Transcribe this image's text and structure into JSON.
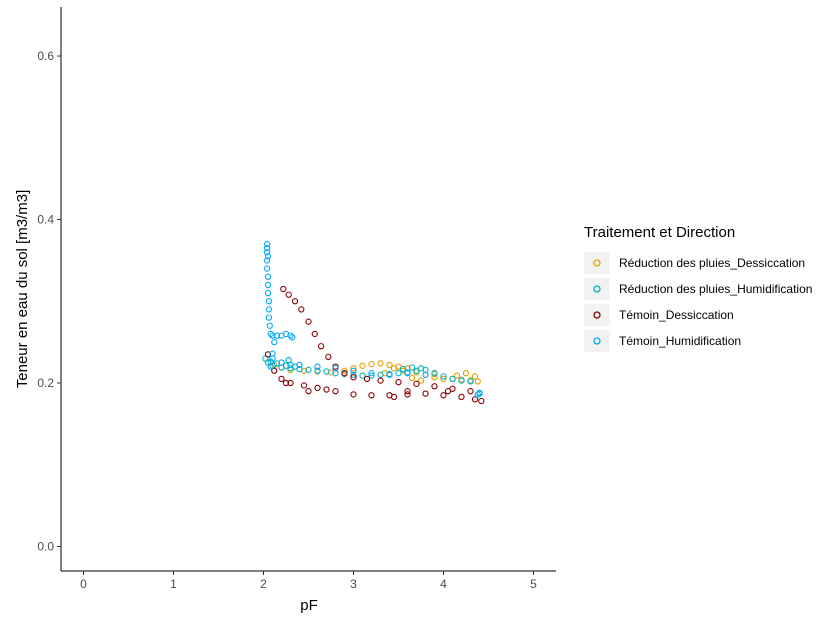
{
  "chart_data": {
    "type": "scatter",
    "title": "",
    "xlabel": "pF",
    "ylabel": "Teneur en eau du sol [m3/m3]",
    "xlim": [
      -0.25,
      5.25
    ],
    "ylim": [
      -0.03,
      0.66
    ],
    "xticks": [
      "0",
      "1",
      "2",
      "3",
      "4",
      "5"
    ],
    "yticks": [
      "0.0",
      "0.2",
      "0.4",
      "0.6"
    ],
    "grid": false,
    "legend": {
      "title": "Traitement et Direction",
      "position": "right"
    },
    "series": [
      {
        "name": "Réduction des pluies_Dessiccation",
        "color": "#E69F00",
        "points": [
          [
            2.05,
            0.225
          ],
          [
            2.12,
            0.222
          ],
          [
            2.2,
            0.219
          ],
          [
            2.3,
            0.216
          ],
          [
            2.45,
            0.215
          ],
          [
            2.6,
            0.214
          ],
          [
            2.75,
            0.213
          ],
          [
            2.9,
            0.215
          ],
          [
            3.0,
            0.218
          ],
          [
            3.1,
            0.221
          ],
          [
            3.2,
            0.223
          ],
          [
            3.3,
            0.224
          ],
          [
            3.4,
            0.222
          ],
          [
            3.5,
            0.22
          ],
          [
            3.6,
            0.218
          ],
          [
            3.7,
            0.213
          ],
          [
            3.8,
            0.21
          ],
          [
            3.9,
            0.207
          ],
          [
            4.0,
            0.205
          ],
          [
            4.1,
            0.205
          ],
          [
            4.2,
            0.204
          ],
          [
            4.3,
            0.203
          ],
          [
            4.38,
            0.202
          ],
          [
            3.55,
            0.215
          ],
          [
            3.45,
            0.218
          ],
          [
            3.65,
            0.206
          ],
          [
            3.75,
            0.203
          ],
          [
            4.25,
            0.212
          ],
          [
            4.35,
            0.208
          ],
          [
            3.35,
            0.212
          ],
          [
            3.9,
            0.211
          ],
          [
            4.15,
            0.209
          ]
        ]
      },
      {
        "name": "Réduction des pluies_Humidification",
        "color": "#00B2C2",
        "points": [
          [
            2.02,
            0.23
          ],
          [
            2.05,
            0.225
          ],
          [
            2.1,
            0.221
          ],
          [
            2.2,
            0.219
          ],
          [
            2.3,
            0.218
          ],
          [
            2.4,
            0.217
          ],
          [
            2.5,
            0.216
          ],
          [
            2.6,
            0.215
          ],
          [
            2.7,
            0.214
          ],
          [
            2.8,
            0.212
          ],
          [
            2.9,
            0.211
          ],
          [
            3.0,
            0.21
          ],
          [
            3.1,
            0.209
          ],
          [
            3.2,
            0.209
          ],
          [
            3.3,
            0.21
          ],
          [
            3.4,
            0.211
          ],
          [
            3.5,
            0.212
          ],
          [
            3.6,
            0.213
          ],
          [
            3.7,
            0.215
          ],
          [
            3.8,
            0.216
          ],
          [
            3.9,
            0.212
          ],
          [
            4.0,
            0.208
          ],
          [
            4.1,
            0.205
          ],
          [
            4.2,
            0.203
          ],
          [
            4.3,
            0.202
          ],
          [
            4.4,
            0.187
          ],
          [
            2.08,
            0.226
          ],
          [
            2.15,
            0.224
          ],
          [
            2.25,
            0.221
          ],
          [
            2.35,
            0.22
          ],
          [
            2.28,
            0.228
          ],
          [
            3.55,
            0.217
          ],
          [
            3.65,
            0.219
          ],
          [
            3.75,
            0.218
          ]
        ]
      },
      {
        "name": "Témoin_Dessiccation",
        "color": "#8B0000",
        "points": [
          [
            2.22,
            0.315
          ],
          [
            2.28,
            0.308
          ],
          [
            2.35,
            0.3
          ],
          [
            2.42,
            0.29
          ],
          [
            2.5,
            0.275
          ],
          [
            2.57,
            0.26
          ],
          [
            2.64,
            0.245
          ],
          [
            2.72,
            0.232
          ],
          [
            2.8,
            0.22
          ],
          [
            2.9,
            0.212
          ],
          [
            3.0,
            0.207
          ],
          [
            3.15,
            0.205
          ],
          [
            3.3,
            0.203
          ],
          [
            3.5,
            0.201
          ],
          [
            3.7,
            0.199
          ],
          [
            3.9,
            0.196
          ],
          [
            4.1,
            0.193
          ],
          [
            4.3,
            0.19
          ],
          [
            4.42,
            0.178
          ],
          [
            2.05,
            0.235
          ],
          [
            2.12,
            0.215
          ],
          [
            2.2,
            0.205
          ],
          [
            2.3,
            0.2
          ],
          [
            2.45,
            0.197
          ],
          [
            2.6,
            0.194
          ],
          [
            2.8,
            0.19
          ],
          [
            3.0,
            0.186
          ],
          [
            3.2,
            0.185
          ],
          [
            3.4,
            0.185
          ],
          [
            3.6,
            0.186
          ],
          [
            3.8,
            0.187
          ],
          [
            4.0,
            0.185
          ],
          [
            4.2,
            0.183
          ],
          [
            4.35,
            0.18
          ],
          [
            2.5,
            0.19
          ],
          [
            2.7,
            0.192
          ],
          [
            3.45,
            0.183
          ],
          [
            3.6,
            0.19
          ],
          [
            4.05,
            0.19
          ],
          [
            2.25,
            0.2
          ]
        ]
      },
      {
        "name": "Témoin_Humidification",
        "color": "#00A9FF",
        "points": [
          [
            2.04,
            0.37
          ],
          [
            2.04,
            0.36
          ],
          [
            2.04,
            0.35
          ],
          [
            2.04,
            0.34
          ],
          [
            2.05,
            0.33
          ],
          [
            2.05,
            0.32
          ],
          [
            2.05,
            0.31
          ],
          [
            2.06,
            0.3
          ],
          [
            2.06,
            0.29
          ],
          [
            2.06,
            0.28
          ],
          [
            2.07,
            0.27
          ],
          [
            2.08,
            0.26
          ],
          [
            2.1,
            0.258
          ],
          [
            2.15,
            0.258
          ],
          [
            2.2,
            0.258
          ],
          [
            2.25,
            0.26
          ],
          [
            2.3,
            0.258
          ],
          [
            2.32,
            0.256
          ],
          [
            2.12,
            0.25
          ],
          [
            2.08,
            0.22
          ],
          [
            2.1,
            0.23
          ],
          [
            2.2,
            0.225
          ],
          [
            2.3,
            0.222
          ],
          [
            2.4,
            0.222
          ],
          [
            2.6,
            0.22
          ],
          [
            2.8,
            0.218
          ],
          [
            3.0,
            0.215
          ],
          [
            3.2,
            0.212
          ],
          [
            3.4,
            0.21
          ],
          [
            3.6,
            0.212
          ],
          [
            3.8,
            0.21
          ],
          [
            4.38,
            0.186
          ],
          [
            4.4,
            0.188
          ],
          [
            2.1,
            0.236
          ],
          [
            2.04,
            0.365
          ],
          [
            2.05,
            0.355
          ]
        ]
      }
    ]
  }
}
